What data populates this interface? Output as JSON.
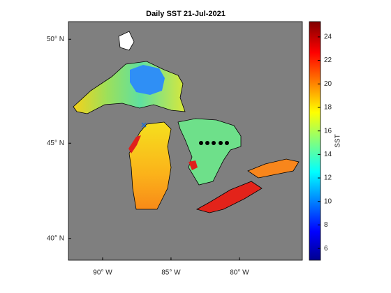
{
  "title": "Daily SST 21-Jul-2021",
  "map": {
    "xlim": [
      -92.5,
      -75.4
    ],
    "ylim": [
      38.8,
      50.8
    ],
    "xticks": [
      {
        "value": -90,
        "label": "90° W"
      },
      {
        "value": -85,
        "label": "85° W"
      },
      {
        "value": -80,
        "label": "80° W"
      }
    ],
    "yticks": [
      {
        "value": 40,
        "label": "40° N"
      },
      {
        "value": 45,
        "label": "45° N"
      },
      {
        "value": 50,
        "label": "50° N"
      }
    ]
  },
  "colorbar": {
    "label": "SST",
    "lim": [
      5,
      25.3
    ],
    "ticks": [
      6,
      8,
      10,
      12,
      14,
      16,
      18,
      20,
      22,
      24
    ]
  }
}
